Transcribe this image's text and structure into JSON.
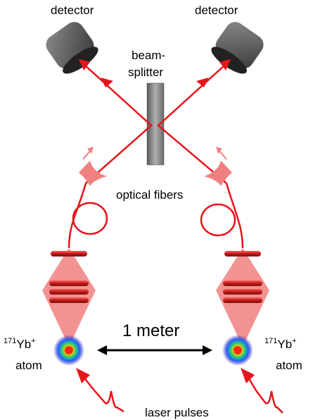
{
  "labels": {
    "detector_left": "detector",
    "detector_right": "detector",
    "beamsplitter_line1": "beam-",
    "beamsplitter_line2": "splitter",
    "optical_fibers": "optical fibers",
    "distance": "1 meter",
    "atom_left_sup": "171",
    "atom_left_main": "Yb",
    "atom_left_charge": "+",
    "atom_left_word": "atom",
    "atom_right_sup": "171",
    "atom_right_main": "Yb",
    "atom_right_charge": "+",
    "atom_right_word": "atom",
    "laser_pulses": "laser pulses"
  },
  "colors": {
    "laser": "#e8141b",
    "light_cone": "#f08080",
    "lens_dark": "#b01010",
    "detector_body": "#707070",
    "beamsplitter": "#909090",
    "text": "#000000"
  }
}
